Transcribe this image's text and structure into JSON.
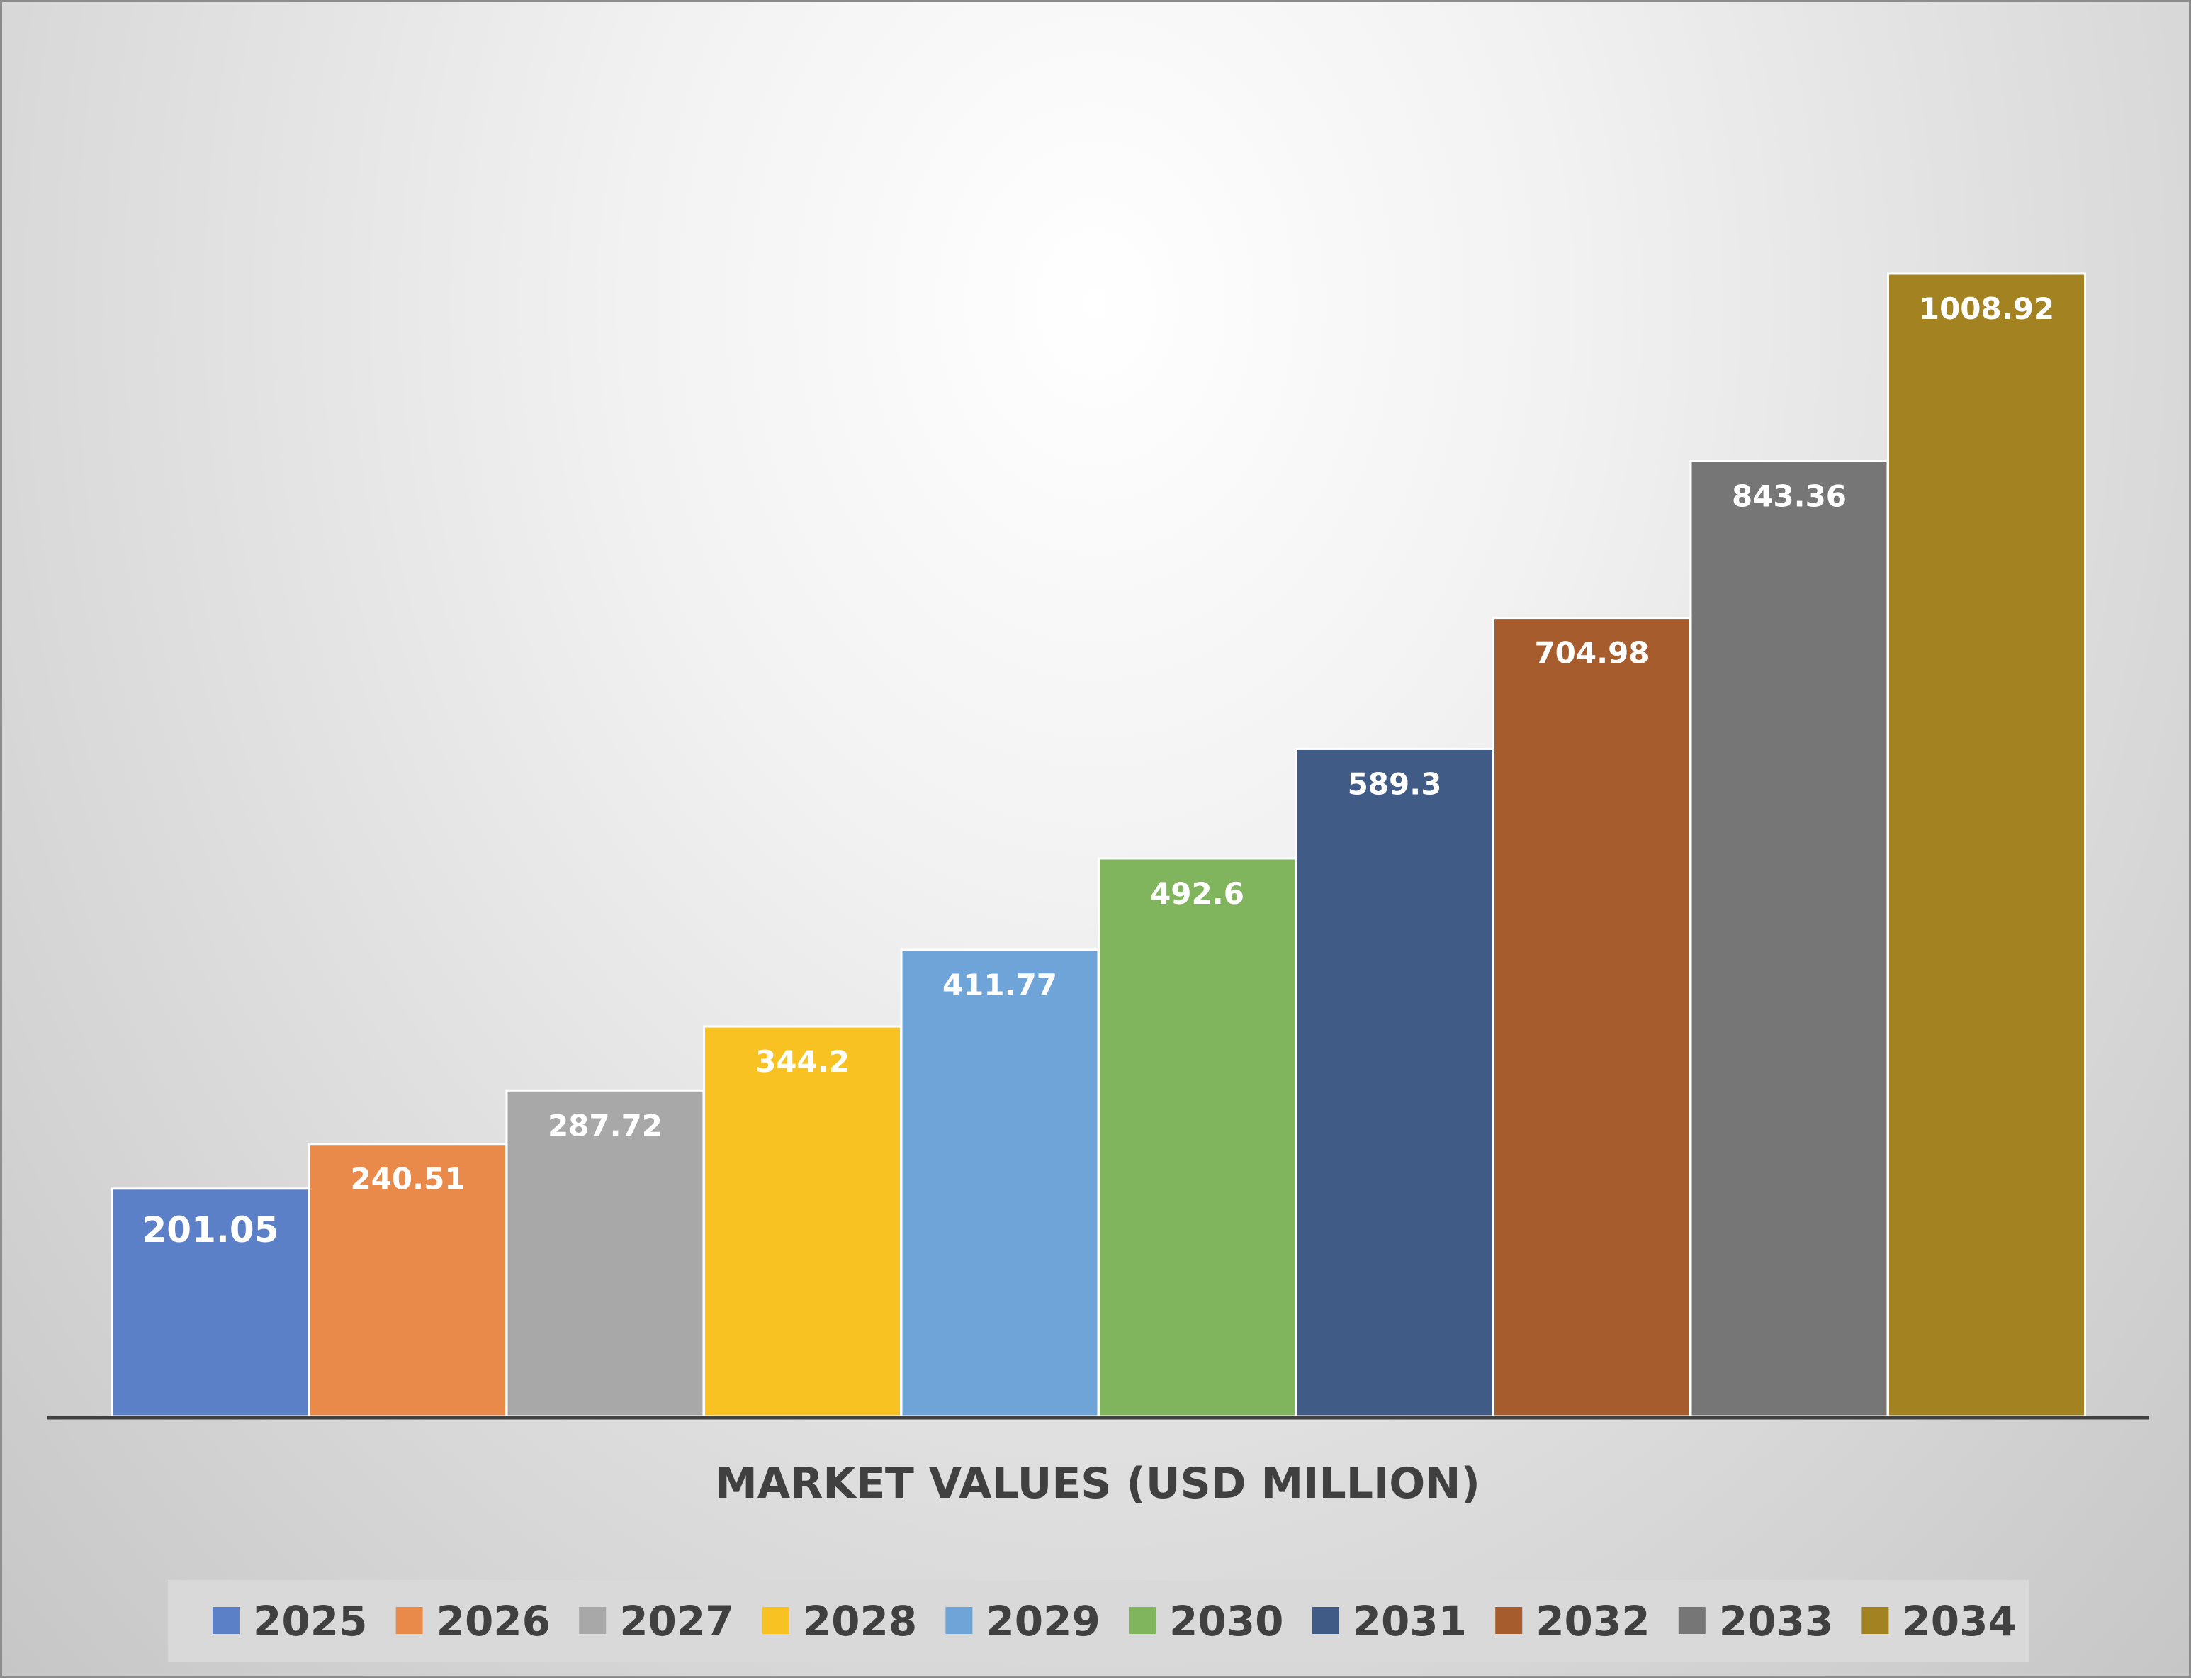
{
  "chart_data": {
    "type": "bar",
    "title": "",
    "xlabel": "MARKET VALUES (USD MILLION)",
    "ylabel": "",
    "ylim": [
      0,
      1008.92
    ],
    "grid": false,
    "legend_position": "bottom",
    "series": [
      {
        "name": "2025",
        "value": 201.05,
        "label": "201.05",
        "color": "#5b80c8"
      },
      {
        "name": "2026",
        "value": 240.51,
        "label": "240.51",
        "color": "#e98a4a"
      },
      {
        "name": "2027",
        "value": 287.72,
        "label": "287.72",
        "color": "#a8a8a8"
      },
      {
        "name": "2028",
        "value": 344.2,
        "label": "344.2",
        "color": "#f8c322"
      },
      {
        "name": "2029",
        "value": 411.77,
        "label": "411.77",
        "color": "#6fa4d8"
      },
      {
        "name": "2030",
        "value": 492.6,
        "label": "492.6",
        "color": "#80b55e"
      },
      {
        "name": "2031",
        "value": 589.3,
        "label": "589.3",
        "color": "#415b87"
      },
      {
        "name": "2032",
        "value": 704.98,
        "label": "704.98",
        "color": "#a65c2c"
      },
      {
        "name": "2033",
        "value": 843.36,
        "label": "843.36",
        "color": "#767676"
      },
      {
        "name": "2034",
        "value": 1008.92,
        "label": "1008.92",
        "color": "#a38222"
      }
    ]
  },
  "colors": {
    "axis_line": "#404040",
    "legend_background": "#d9d9d9",
    "text_dark": "#404040"
  }
}
